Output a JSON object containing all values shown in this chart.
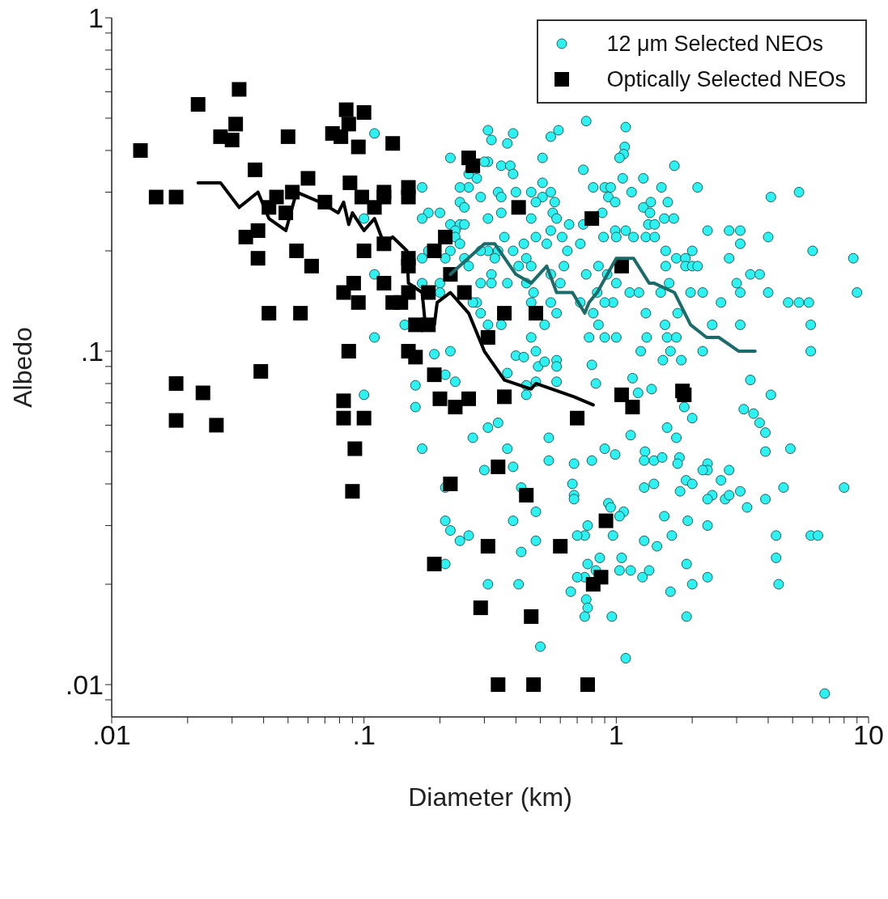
{
  "chart_data": {
    "type": "scatter",
    "xlabel": "Diameter (km)",
    "ylabel": "Albedo",
    "log": "xy",
    "xlim": [
      0.01,
      10
    ],
    "ylim": [
      0.008,
      1
    ],
    "xticks": [
      {
        "value": 0.01,
        "label": ".01"
      },
      {
        "value": 0.02,
        "label": null
      },
      {
        "value": 0.03,
        "label": null
      },
      {
        "value": 0.04,
        "label": null
      },
      {
        "value": 0.05,
        "label": null
      },
      {
        "value": 0.06,
        "label": null
      },
      {
        "value": 0.07,
        "label": null
      },
      {
        "value": 0.08,
        "label": null
      },
      {
        "value": 0.09,
        "label": null
      },
      {
        "value": 0.1,
        "label": ".1"
      },
      {
        "value": 0.2,
        "label": null
      },
      {
        "value": 0.3,
        "label": null
      },
      {
        "value": 0.4,
        "label": null
      },
      {
        "value": 0.5,
        "label": null
      },
      {
        "value": 0.6,
        "label": null
      },
      {
        "value": 0.7,
        "label": null
      },
      {
        "value": 0.8,
        "label": null
      },
      {
        "value": 0.9,
        "label": null
      },
      1,
      {
        "value": 2,
        "label": null
      },
      {
        "value": 3,
        "label": null
      },
      {
        "value": 4,
        "label": null
      },
      {
        "value": 5,
        "label": null
      },
      {
        "value": 6,
        "label": null
      },
      {
        "value": 7,
        "label": null
      },
      {
        "value": 8,
        "label": null
      },
      {
        "value": 9,
        "label": null
      },
      10
    ],
    "yticks": [
      {
        "value": 0.009,
        "label": null
      },
      {
        "value": 0.01,
        "label": ".01"
      },
      {
        "value": 0.02,
        "label": null
      },
      {
        "value": 0.03,
        "label": null
      },
      {
        "value": 0.04,
        "label": null
      },
      {
        "value": 0.05,
        "label": null
      },
      {
        "value": 0.06,
        "label": null
      },
      {
        "value": 0.07,
        "label": null
      },
      {
        "value": 0.08,
        "label": null
      },
      {
        "value": 0.09,
        "label": null
      },
      {
        "value": 0.1,
        "label": ".1"
      },
      {
        "value": 0.2,
        "label": null
      },
      {
        "value": 0.3,
        "label": null
      },
      {
        "value": 0.4,
        "label": null
      },
      {
        "value": 0.5,
        "label": null
      },
      {
        "value": 0.6,
        "label": null
      },
      {
        "value": 0.7,
        "label": null
      },
      {
        "value": 0.8,
        "label": null
      },
      {
        "value": 0.9,
        "label": null
      },
      1
    ],
    "legend": "top right",
    "series": [
      {
        "name": "12 μm Selected NEOs",
        "type": "scatter",
        "marker": "circle",
        "color": "#2ef2f2",
        "x": [
          0.31,
          0.32,
          0.37,
          0.39,
          0.55,
          0.59,
          0.76,
          1.09,
          1.08,
          1.07,
          1.03,
          0.51,
          0.31,
          0.35,
          0.38,
          0.39,
          0.74,
          1.7,
          0.51,
          1.06,
          1.28,
          2.1,
          1.51,
          4.1,
          5.3,
          0.81,
          0.9,
          0.95,
          1.15,
          0.34,
          0.4,
          0.46,
          0.51,
          0.55,
          0.35,
          0.48,
          0.57,
          0.93,
          0.99,
          1.37,
          1.6,
          1.28,
          0.56,
          0.35,
          0.88,
          0.46,
          0.58,
          0.65,
          0.74,
          1.36,
          1.55,
          1.69,
          1.34,
          1.42,
          2.3,
          2.8,
          3.1,
          0.48,
          0.55,
          0.61,
          0.99,
          1.09,
          1.17,
          0.89,
          1.0,
          1.31,
          1.42,
          4.0,
          3.1,
          0.36,
          0.72,
          0.43,
          0.53,
          0.64,
          0.31,
          0.39,
          0.44,
          0.34,
          0.33,
          0.41,
          0.46,
          0.62,
          0.85,
          0.92,
          1.57,
          1.73,
          1.88,
          2.0,
          1.88,
          2.0,
          2.1,
          1.57,
          2.8,
          6.0,
          8.7,
          3.4,
          3.7,
          0.32,
          0.37,
          0.55,
          0.76,
          0.32,
          0.44,
          0.6,
          1.62,
          3.0,
          1.0,
          1.13,
          1.23,
          1.5,
          1.97,
          2.2,
          3.1,
          4.0,
          9.0,
          0.47,
          0.55,
          0.84,
          2.6,
          4.8,
          5.3,
          5.8,
          0.46,
          0.97,
          0.9,
          0.72,
          1.31,
          1.75,
          0.58,
          0.81,
          0.31,
          0.35,
          0.52,
          0.85,
          5.9,
          2.4,
          3.1,
          0.78,
          1.0,
          1.32,
          1.56,
          0.46,
          0.9,
          1.25,
          1.59,
          1.73,
          1.64,
          2.2,
          5.9,
          0.48,
          0.4,
          0.43,
          0.11,
          0.22,
          0.3,
          0.28,
          0.26,
          0.26,
          0.24,
          0.29,
          0.17,
          0.24,
          0.25,
          0.18,
          0.2,
          0.17,
          0.22,
          0.24,
          0.25,
          0.31,
          0.23,
          0.23,
          0.24,
          0.22,
          0.25,
          0.18,
          0.17,
          0.21,
          0.29,
          0.26,
          0.11,
          0.17,
          0.2,
          0.29,
          0.2,
          0.28,
          0.27,
          0.29,
          0.11,
          0.145,
          0.19,
          0.22,
          0.1,
          0.1,
          0.16,
          0.16,
          0.17,
          0.21,
          0.23,
          0.31,
          0.27,
          0.3,
          0.21,
          0.21,
          0.22,
          0.26,
          0.24,
          0.21,
          0.31,
          0.49,
          0.52,
          0.58,
          0.58,
          0.37,
          0.8,
          0.44,
          0.48,
          0.58,
          0.44,
          0.83,
          1.16,
          1.22,
          1.38,
          1.53,
          1.81,
          1.86,
          2.0,
          1.59,
          1.73,
          1.14,
          3.4,
          4.1,
          3.2,
          3.5,
          3.7,
          3.9,
          3.9,
          4.9,
          4.6,
          8.0,
          0.34,
          0.54,
          0.37,
          0.54,
          0.68,
          0.8,
          0.9,
          0.99,
          1.3,
          1.29,
          1.41,
          1.52,
          1.78,
          1.75,
          0.39,
          0.67,
          0.68,
          0.68,
          0.42,
          1.29,
          1.41,
          1.79,
          1.89,
          2.0,
          2.3,
          2.3,
          2.2,
          2.8,
          2.6,
          3.1,
          3.9,
          3.3,
          2.4,
          2.7,
          2.8,
          2.3,
          0.93,
          0.95,
          1.07,
          1.03,
          1.55,
          0.48,
          0.39,
          1.92,
          2.3,
          0.77,
          0.75,
          0.7,
          0.97,
          1.66,
          1.29,
          1.45,
          0.48,
          0.42,
          4.3,
          5.9,
          6.3,
          4.3,
          0.86,
          1.05,
          1.14,
          1.35,
          1.9,
          0.77,
          0.83,
          1.03,
          0.75,
          0.7,
          1.27,
          2.3,
          2.0,
          4.4,
          0.41,
          0.66,
          1.64,
          0.76,
          0.77,
          0.75,
          0.96,
          1.9,
          0.5,
          1.09,
          6.7
        ],
        "values": [
          0.46,
          0.43,
          0.42,
          0.45,
          0.44,
          0.46,
          0.49,
          0.47,
          0.41,
          0.39,
          0.38,
          0.38,
          0.37,
          0.36,
          0.36,
          0.34,
          0.35,
          0.36,
          0.32,
          0.33,
          0.33,
          0.31,
          0.31,
          0.29,
          0.3,
          0.31,
          0.31,
          0.31,
          0.3,
          0.3,
          0.3,
          0.3,
          0.29,
          0.3,
          0.29,
          0.28,
          0.28,
          0.29,
          0.28,
          0.28,
          0.28,
          0.27,
          0.26,
          0.26,
          0.26,
          0.25,
          0.25,
          0.24,
          0.24,
          0.26,
          0.25,
          0.25,
          0.24,
          0.24,
          0.23,
          0.23,
          0.23,
          0.22,
          0.23,
          0.22,
          0.23,
          0.23,
          0.22,
          0.22,
          0.22,
          0.22,
          0.22,
          0.22,
          0.21,
          0.22,
          0.21,
          0.21,
          0.21,
          0.2,
          0.2,
          0.2,
          0.19,
          0.2,
          0.19,
          0.18,
          0.18,
          0.18,
          0.18,
          0.17,
          0.2,
          0.19,
          0.19,
          0.2,
          0.18,
          0.18,
          0.18,
          0.18,
          0.19,
          0.2,
          0.19,
          0.17,
          0.17,
          0.17,
          0.16,
          0.17,
          0.17,
          0.16,
          0.16,
          0.16,
          0.16,
          0.16,
          0.16,
          0.15,
          0.15,
          0.15,
          0.15,
          0.15,
          0.15,
          0.15,
          0.15,
          0.15,
          0.14,
          0.15,
          0.14,
          0.14,
          0.14,
          0.14,
          0.14,
          0.14,
          0.14,
          0.14,
          0.13,
          0.13,
          0.13,
          0.13,
          0.12,
          0.12,
          0.12,
          0.12,
          0.12,
          0.12,
          0.12,
          0.11,
          0.11,
          0.11,
          0.12,
          0.11,
          0.11,
          0.1,
          0.11,
          0.11,
          0.1,
          0.1,
          0.1,
          0.1,
          0.097,
          0.096,
          0.45,
          0.38,
          0.37,
          0.33,
          0.34,
          0.31,
          0.31,
          0.29,
          0.31,
          0.28,
          0.27,
          0.26,
          0.26,
          0.25,
          0.24,
          0.24,
          0.24,
          0.25,
          0.23,
          0.22,
          0.21,
          0.2,
          0.19,
          0.2,
          0.19,
          0.19,
          0.2,
          0.18,
          0.17,
          0.16,
          0.16,
          0.16,
          0.15,
          0.14,
          0.14,
          0.13,
          0.11,
          0.12,
          0.098,
          0.1,
          0.25,
          0.074,
          0.079,
          0.068,
          0.051,
          0.085,
          0.081,
          0.059,
          0.055,
          0.044,
          0.039,
          0.031,
          0.029,
          0.028,
          0.027,
          0.023,
          0.02,
          0.09,
          0.093,
          0.094,
          0.09,
          0.086,
          0.091,
          0.079,
          0.081,
          0.081,
          0.074,
          0.08,
          0.083,
          0.075,
          0.077,
          0.094,
          0.094,
          0.068,
          0.063,
          0.059,
          0.055,
          0.056,
          0.082,
          0.074,
          0.067,
          0.065,
          0.061,
          0.057,
          0.05,
          0.051,
          0.039,
          0.039,
          0.061,
          0.055,
          0.051,
          0.047,
          0.046,
          0.047,
          0.051,
          0.049,
          0.05,
          0.047,
          0.047,
          0.048,
          0.048,
          0.046,
          0.045,
          0.04,
          0.037,
          0.036,
          0.039,
          0.039,
          0.04,
          0.038,
          0.041,
          0.04,
          0.046,
          0.044,
          0.044,
          0.044,
          0.041,
          0.038,
          0.036,
          0.034,
          0.037,
          0.036,
          0.037,
          0.036,
          0.035,
          0.034,
          0.033,
          0.032,
          0.032,
          0.033,
          0.031,
          0.031,
          0.03,
          0.03,
          0.028,
          0.028,
          0.028,
          0.028,
          0.027,
          0.026,
          0.027,
          0.025,
          0.028,
          0.028,
          0.028,
          0.024,
          0.024,
          0.024,
          0.022,
          0.022,
          0.023,
          0.023,
          0.022,
          0.022,
          0.021,
          0.021,
          0.021,
          0.021,
          0.02,
          0.02,
          0.02,
          0.019,
          0.019,
          0.018,
          0.017,
          0.016,
          0.016,
          0.016,
          0.013,
          0.012,
          0.0094
        ]
      },
      {
        "name": "Optically Selected NEOs",
        "type": "scatter",
        "marker": "square",
        "color": "#000000",
        "x": [
          0.013,
          0.015,
          0.018,
          0.022,
          0.032,
          0.031,
          0.027,
          0.03,
          0.05,
          0.037,
          0.06,
          0.045,
          0.052,
          0.042,
          0.049,
          0.038,
          0.034,
          0.054,
          0.038,
          0.062,
          0.07,
          0.085,
          0.1,
          0.087,
          0.075,
          0.081,
          0.095,
          0.13,
          0.088,
          0.098,
          0.12,
          0.12,
          0.11,
          0.15,
          0.15,
          0.26,
          0.27,
          0.21,
          0.19,
          0.12,
          0.1,
          0.15,
          0.15,
          0.091,
          0.083,
          0.095,
          0.12,
          0.15,
          0.13,
          0.14,
          0.18,
          0.22,
          0.25,
          0.16,
          0.18,
          0.042,
          0.056,
          0.087,
          0.15,
          0.16,
          0.31,
          0.018,
          0.023,
          0.018,
          0.026,
          0.039,
          0.19,
          0.2,
          0.23,
          0.26,
          0.083,
          0.083,
          0.1,
          0.092,
          0.09,
          0.22,
          0.19,
          0.29,
          0.31,
          0.41,
          0.8,
          1.05,
          0.36,
          0.48,
          0.36,
          0.7,
          1.05,
          1.16,
          1.83,
          1.86,
          0.34,
          0.44,
          0.91,
          0.6,
          0.87,
          0.81,
          0.46,
          0.34,
          0.47,
          0.77
        ],
        "values": [
          0.4,
          0.29,
          0.29,
          0.55,
          0.61,
          0.48,
          0.44,
          0.43,
          0.44,
          0.35,
          0.33,
          0.29,
          0.3,
          0.27,
          0.26,
          0.23,
          0.22,
          0.2,
          0.19,
          0.18,
          0.28,
          0.53,
          0.52,
          0.48,
          0.45,
          0.44,
          0.41,
          0.42,
          0.32,
          0.29,
          0.3,
          0.29,
          0.27,
          0.31,
          0.29,
          0.38,
          0.36,
          0.22,
          0.2,
          0.21,
          0.2,
          0.19,
          0.18,
          0.16,
          0.15,
          0.14,
          0.16,
          0.15,
          0.14,
          0.14,
          0.15,
          0.17,
          0.15,
          0.12,
          0.12,
          0.13,
          0.13,
          0.1,
          0.1,
          0.096,
          0.11,
          0.08,
          0.075,
          0.062,
          0.06,
          0.087,
          0.085,
          0.072,
          0.068,
          0.072,
          0.071,
          0.063,
          0.063,
          0.051,
          0.038,
          0.04,
          0.023,
          0.017,
          0.026,
          0.27,
          0.25,
          0.18,
          0.13,
          0.13,
          0.073,
          0.063,
          0.074,
          0.068,
          0.076,
          0.074,
          0.045,
          0.037,
          0.031,
          0.026,
          0.021,
          0.02,
          0.016,
          0.01,
          0.01,
          0.01
        ]
      },
      {
        "type": "line",
        "marker": "none",
        "color": "#000000",
        "x": [
          0.022,
          0.027,
          0.032,
          0.038,
          0.042,
          0.049,
          0.054,
          0.067,
          0.079,
          0.083,
          0.087,
          0.09,
          0.1,
          0.11,
          0.12,
          0.13,
          0.148,
          0.15,
          0.17,
          0.175,
          0.19,
          0.195,
          0.22,
          0.26,
          0.3,
          0.36,
          0.46,
          0.48,
          0.68,
          0.81
        ],
        "values": [
          0.32,
          0.32,
          0.27,
          0.3,
          0.25,
          0.23,
          0.3,
          0.28,
          0.26,
          0.28,
          0.24,
          0.26,
          0.23,
          0.25,
          0.21,
          0.22,
          0.2,
          0.16,
          0.15,
          0.12,
          0.12,
          0.14,
          0.15,
          0.13,
          0.1,
          0.082,
          0.077,
          0.08,
          0.073,
          0.069
        ]
      },
      {
        "type": "line",
        "marker": "none",
        "color": "#1b6b6b",
        "x": [
          0.22,
          0.3,
          0.33,
          0.4,
          0.46,
          0.53,
          0.58,
          0.67,
          0.75,
          0.78,
          0.84,
          1.0,
          1.17,
          1.35,
          1.41,
          1.7,
          1.97,
          2.28,
          2.55,
          3.06,
          3.55
        ],
        "values": [
          0.17,
          0.21,
          0.21,
          0.17,
          0.16,
          0.18,
          0.15,
          0.15,
          0.13,
          0.14,
          0.15,
          0.19,
          0.19,
          0.16,
          0.16,
          0.15,
          0.12,
          0.11,
          0.11,
          0.1,
          0.1
        ]
      }
    ]
  }
}
